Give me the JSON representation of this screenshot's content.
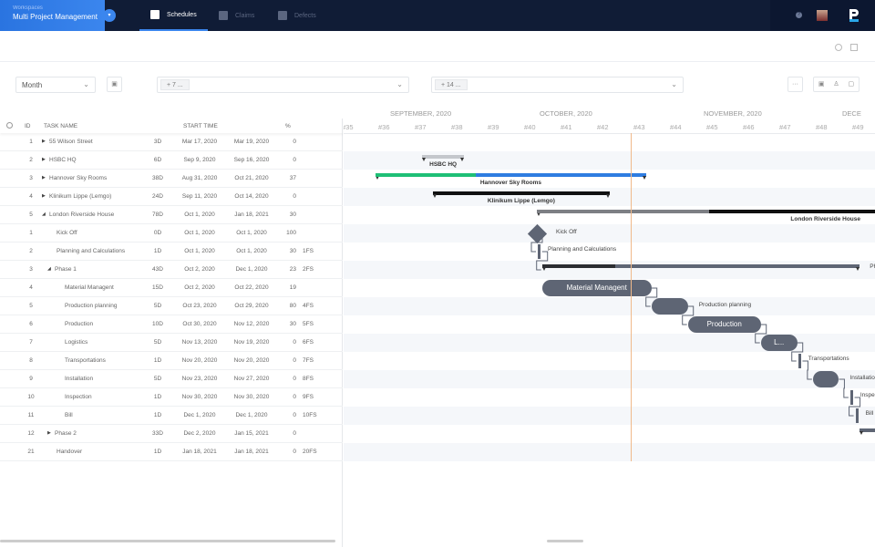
{
  "nav": {
    "workspace_label": "Workspaces",
    "workspace_name": "Multi Project Management",
    "tabs": [
      {
        "label": "Schedules",
        "icon": "calendar-icon",
        "active": true
      },
      {
        "label": "Claims",
        "icon": "clipboard-icon",
        "active": false
      },
      {
        "label": "Defects",
        "icon": "alert-icon",
        "active": false
      }
    ],
    "help": "?"
  },
  "toolbar": {
    "view_select": "Month",
    "projects_chip": "+ 7 ...",
    "resources_chip": "+ 14 ...",
    "more": "···"
  },
  "table": {
    "headers": {
      "id": "ID",
      "name": "TASK NAME",
      "start": "START TIME",
      "pct": "%"
    },
    "rows": [
      {
        "id": "1",
        "name": "55 Wilson Street",
        "level": 0,
        "toggle": "collapsed",
        "dur": "3D",
        "start": "Mar 17, 2020",
        "end": "Mar 19, 2020",
        "pct": "0",
        "pred": "",
        "type": "none"
      },
      {
        "id": "2",
        "name": "HSBC HQ",
        "level": 0,
        "toggle": "collapsed",
        "dur": "6D",
        "start": "Sep 9, 2020",
        "end": "Sep 16, 2020",
        "pct": "0",
        "pred": "",
        "type": "summary",
        "color": "#c4c7cc"
      },
      {
        "id": "3",
        "name": "Hannover Sky Rooms",
        "level": 0,
        "toggle": "collapsed",
        "dur": "38D",
        "start": "Aug 31, 2020",
        "end": "Oct 21, 2020",
        "pct": "37",
        "pred": "",
        "type": "summary",
        "color": "#2f7de1",
        "progress_color": "#1fbf76"
      },
      {
        "id": "4",
        "name": "Klinikum Lippe (Lemgo)",
        "level": 0,
        "toggle": "collapsed",
        "dur": "24D",
        "start": "Sep 11, 2020",
        "end": "Oct 14, 2020",
        "pct": "0",
        "pred": "",
        "type": "summary",
        "color": "#111111"
      },
      {
        "id": "5",
        "name": "London Riverside House",
        "level": 0,
        "toggle": "expanded",
        "dur": "78D",
        "start": "Oct 1, 2020",
        "end": "Jan 18, 2021",
        "pct": "30",
        "pred": "",
        "type": "summary",
        "color": "#111111",
        "progress_color": "#7d7f84",
        "label_right": true
      },
      {
        "id": "1",
        "name": "Kick Off",
        "level": 1,
        "toggle": "",
        "dur": "0D",
        "start": "Oct 1, 2020",
        "end": "Oct 1, 2020",
        "pct": "100",
        "pred": "",
        "type": "milestone"
      },
      {
        "id": "2",
        "name": "Planning and Calculations",
        "level": 1,
        "toggle": "",
        "dur": "1D",
        "start": "Oct 1, 2020",
        "end": "Oct 1, 2020",
        "pct": "30",
        "pred": "1FS",
        "type": "thin"
      },
      {
        "id": "3",
        "name": "Phase 1",
        "level": 1,
        "toggle": "expanded",
        "dur": "43D",
        "start": "Oct 2, 2020",
        "end": "Dec 1, 2020",
        "pct": "23",
        "pred": "2FS",
        "type": "summary",
        "color": "#5e6574",
        "progress_color": "#2b2d31",
        "label": "Ph"
      },
      {
        "id": "4",
        "name": "Material Managent",
        "level": 2,
        "toggle": "",
        "dur": "15D",
        "start": "Oct 2, 2020",
        "end": "Oct 22, 2020",
        "pct": "19",
        "pred": "",
        "type": "pill",
        "inside": "Material Managent"
      },
      {
        "id": "5",
        "name": "Production planning",
        "level": 2,
        "toggle": "",
        "dur": "5D",
        "start": "Oct 23, 2020",
        "end": "Oct 29, 2020",
        "pct": "80",
        "pred": "4FS",
        "type": "pill"
      },
      {
        "id": "6",
        "name": "Production",
        "level": 2,
        "toggle": "",
        "dur": "10D",
        "start": "Oct 30, 2020",
        "end": "Nov 12, 2020",
        "pct": "30",
        "pred": "5FS",
        "type": "pill",
        "inside": "Production"
      },
      {
        "id": "7",
        "name": "Logistics",
        "level": 2,
        "toggle": "",
        "dur": "5D",
        "start": "Nov 13, 2020",
        "end": "Nov 19, 2020",
        "pct": "0",
        "pred": "6FS",
        "type": "pill",
        "inside": "L..."
      },
      {
        "id": "8",
        "name": "Transportations",
        "level": 2,
        "toggle": "",
        "dur": "1D",
        "start": "Nov 20, 2020",
        "end": "Nov 20, 2020",
        "pct": "0",
        "pred": "7FS",
        "type": "thin"
      },
      {
        "id": "9",
        "name": "Installation",
        "level": 2,
        "toggle": "",
        "dur": "5D",
        "start": "Nov 23, 2020",
        "end": "Nov 27, 2020",
        "pct": "0",
        "pred": "8FS",
        "type": "pill"
      },
      {
        "id": "10",
        "name": "Inspection",
        "level": 2,
        "toggle": "",
        "dur": "1D",
        "start": "Nov 30, 2020",
        "end": "Nov 30, 2020",
        "pct": "0",
        "pred": "9FS",
        "type": "thin"
      },
      {
        "id": "11",
        "name": "Bill",
        "level": 2,
        "toggle": "",
        "dur": "1D",
        "start": "Dec 1, 2020",
        "end": "Dec 1, 2020",
        "pct": "0",
        "pred": "10FS",
        "type": "thin"
      },
      {
        "id": "12",
        "name": "Phase 2",
        "level": 1,
        "toggle": "collapsed",
        "dur": "33D",
        "start": "Dec 2, 2020",
        "end": "Jan 15, 2021",
        "pct": "0",
        "pred": "",
        "type": "summary",
        "color": "#5e6574",
        "nolabel": true
      },
      {
        "id": "21",
        "name": "Handover",
        "level": 1,
        "toggle": "",
        "dur": "1D",
        "start": "Jan 18, 2021",
        "end": "Jan 18, 2021",
        "pct": "0",
        "pred": "20FS",
        "type": "none"
      }
    ]
  },
  "timeline": {
    "months": [
      {
        "label": "SEPTEMBER, 2020",
        "week": 36.9
      },
      {
        "label": "OCTOBER, 2020",
        "week": 41
      },
      {
        "label": "NOVEMBER, 2020",
        "week": 45.5
      },
      {
        "label": "DECE",
        "week": 49.3
      }
    ],
    "weeks": [
      "#35",
      "#36",
      "#37",
      "#38",
      "#39",
      "#40",
      "#41",
      "#42",
      "#43",
      "#44",
      "#45",
      "#46",
      "#47",
      "#48",
      "#49"
    ],
    "today": "Oct 19, 2020"
  }
}
